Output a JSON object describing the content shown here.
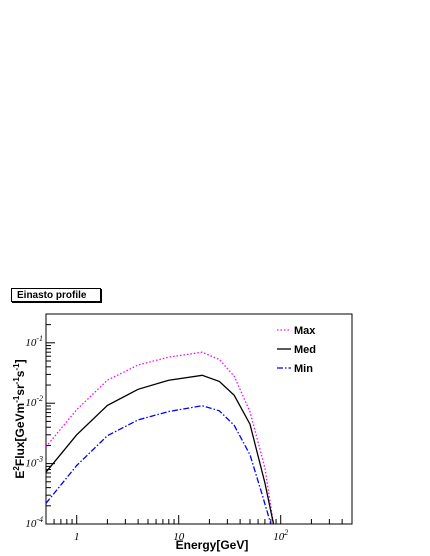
{
  "chart_data": {
    "type": "line",
    "title": "Einasto profile",
    "xlabel": "Energy[GeV]",
    "ylabel_parts": [
      "E",
      "2",
      "Flux[GeVm",
      "-1",
      "sr",
      "-1",
      "s",
      "-1",
      "]"
    ],
    "xscale": "log",
    "yscale": "log",
    "xlim": [
      0.5,
      500
    ],
    "ylim": [
      0.0001,
      0.3
    ],
    "x_ticks": [
      {
        "value": 1,
        "label": "1"
      },
      {
        "value": 10,
        "label": "10"
      },
      {
        "value": 100,
        "label": "10",
        "sup": "2"
      }
    ],
    "y_ticks": [
      {
        "value": 0.0001,
        "label": "10",
        "sup": "-4"
      },
      {
        "value": 0.001,
        "label": "10",
        "sup": "-3"
      },
      {
        "value": 0.01,
        "label": "10",
        "sup": "-2"
      },
      {
        "value": 0.1,
        "label": "10",
        "sup": "-1"
      }
    ],
    "legend_position": "top-right",
    "series": [
      {
        "name": "Max",
        "color": "#ff00ff",
        "dash": "1.5,2",
        "x": [
          0.5,
          1,
          2,
          4,
          8,
          17,
          25,
          35,
          50,
          70,
          85
        ],
        "y": [
          0.0019,
          0.0078,
          0.024,
          0.043,
          0.058,
          0.07,
          0.053,
          0.028,
          0.0072,
          0.00085,
          0.0001
        ]
      },
      {
        "name": "Med",
        "color": "#000000",
        "dash": "",
        "x": [
          0.5,
          1,
          2,
          4,
          8,
          17,
          25,
          35,
          50,
          70,
          85
        ],
        "y": [
          0.00072,
          0.003,
          0.0092,
          0.017,
          0.024,
          0.029,
          0.023,
          0.0135,
          0.0045,
          0.00048,
          0.0001
        ]
      },
      {
        "name": "Min",
        "color": "#0000ff",
        "dash": "6,2,1.5,2",
        "x": [
          0.5,
          1,
          2,
          4,
          8,
          17,
          25,
          35,
          50,
          65,
          80
        ],
        "y": [
          0.00022,
          0.00093,
          0.0029,
          0.0053,
          0.0073,
          0.0091,
          0.0075,
          0.0043,
          0.0014,
          0.00033,
          0.0001
        ]
      }
    ]
  }
}
